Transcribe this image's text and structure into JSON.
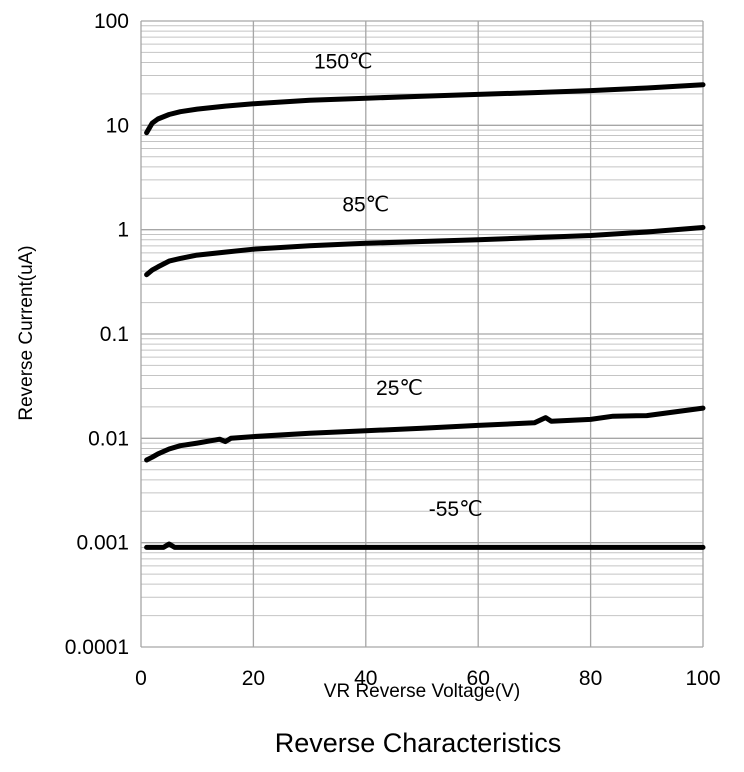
{
  "chart_data": {
    "type": "line",
    "title": "Reverse Characteristics",
    "xlabel": "VR Reverse Voltage(V)",
    "ylabel": "Reverse Current(uA)",
    "xlim": [
      0,
      100
    ],
    "ylim": [
      0.0001,
      100
    ],
    "y_scale": "log",
    "grid": true,
    "x_ticks": [
      "0",
      "20",
      "40",
      "60",
      "80",
      "100"
    ],
    "y_ticks": [
      "0.0001",
      "0.001",
      "0.01",
      "0.1",
      "1",
      "10",
      "100"
    ],
    "series": [
      {
        "name": "150℃",
        "x": [
          1,
          2,
          3,
          5,
          7,
          10,
          15,
          20,
          30,
          40,
          50,
          60,
          70,
          80,
          90,
          100
        ],
        "y": [
          8.5,
          10.5,
          11.5,
          12.7,
          13.5,
          14.3,
          15.3,
          16.1,
          17.4,
          18.2,
          19.0,
          19.8,
          20.6,
          21.5,
          22.8,
          24.5
        ]
      },
      {
        "name": "85℃",
        "x": [
          1,
          2,
          3,
          5,
          7,
          10,
          15,
          20,
          30,
          40,
          50,
          60,
          70,
          80,
          90,
          100
        ],
        "y": [
          0.37,
          0.41,
          0.44,
          0.5,
          0.53,
          0.57,
          0.61,
          0.65,
          0.7,
          0.74,
          0.77,
          0.8,
          0.84,
          0.88,
          0.95,
          1.05
        ]
      },
      {
        "name": "25℃",
        "x": [
          1,
          2,
          3,
          5,
          7,
          10,
          14,
          15,
          16,
          20,
          30,
          40,
          50,
          60,
          70,
          72,
          73,
          80,
          84,
          90,
          100
        ],
        "y": [
          0.0062,
          0.0066,
          0.0071,
          0.0079,
          0.0085,
          0.009,
          0.0098,
          0.0093,
          0.01,
          0.0104,
          0.0112,
          0.0118,
          0.0125,
          0.0133,
          0.0141,
          0.0158,
          0.0146,
          0.0152,
          0.0163,
          0.0165,
          0.0195
        ]
      },
      {
        "name": "-55℃",
        "x": [
          1,
          4,
          5,
          6,
          7,
          20,
          40,
          60,
          80,
          100
        ],
        "y": [
          0.0009,
          0.0009,
          0.00097,
          0.0009,
          0.0009,
          0.0009,
          0.0009,
          0.0009,
          0.0009,
          0.0009
        ]
      }
    ],
    "annotations": [
      {
        "text": "150℃",
        "series": 0,
        "x": 36,
        "y": 35
      },
      {
        "text": "85℃",
        "series": 1,
        "x": 40,
        "y": 1.5
      },
      {
        "text": "25℃",
        "series": 2,
        "x": 46,
        "y": 0.026
      },
      {
        "text": "-55℃",
        "series": 3,
        "x": 56,
        "y": 0.0018
      }
    ]
  }
}
